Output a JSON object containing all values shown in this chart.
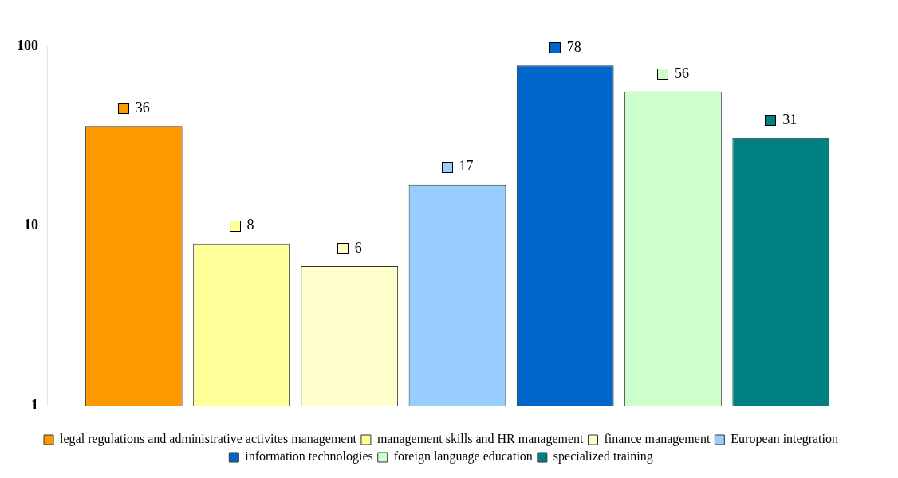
{
  "chart_data": {
    "type": "bar",
    "categories": [
      null
    ],
    "series": [
      {
        "name": "legal regulations and administrative activites management",
        "color": "#ff9900",
        "values": [
          36
        ]
      },
      {
        "name": "management skills and HR management",
        "color": "#ffff99",
        "values": [
          8
        ]
      },
      {
        "name": "finance management",
        "color": "#ffffcc",
        "values": [
          6
        ]
      },
      {
        "name": "European integration",
        "color": "#99ccff",
        "values": [
          17
        ]
      },
      {
        "name": "information technologies",
        "color": "#0066cc",
        "values": [
          78
        ]
      },
      {
        "name": "foreign language education",
        "color": "#ccffcc",
        "values": [
          56
        ]
      },
      {
        "name": "specialized training",
        "color": "#008080",
        "values": [
          31
        ]
      }
    ],
    "log": "y",
    "ylim": [
      1,
      100
    ],
    "yticks": [
      1,
      10,
      100
    ],
    "data_labels": true,
    "legend": "bottom",
    "grid": false
  }
}
